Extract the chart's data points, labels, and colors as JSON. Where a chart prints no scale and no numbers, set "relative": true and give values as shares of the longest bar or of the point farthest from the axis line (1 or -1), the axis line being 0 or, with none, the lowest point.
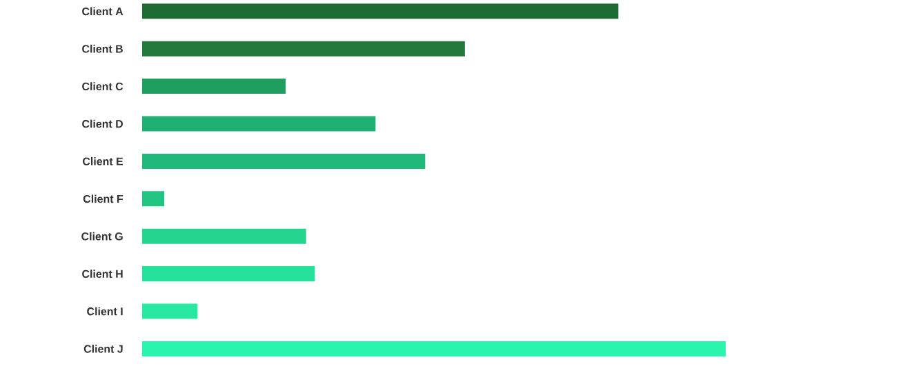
{
  "chart_data": {
    "type": "bar",
    "orientation": "horizontal",
    "relative": true,
    "categories": [
      "Client A",
      "Client B",
      "Client C",
      "Client D",
      "Client E",
      "Client F",
      "Client G",
      "Client H",
      "Client I",
      "Client J"
    ],
    "values": [
      0.816,
      0.553,
      0.246,
      0.4,
      0.485,
      0.038,
      0.281,
      0.296,
      0.095,
      1
    ],
    "colors": [
      "#1e6b34",
      "#217a3c",
      "#1f9e5f",
      "#1fb072",
      "#20b97a",
      "#22c482",
      "#25d58e",
      "#27e09b",
      "#28e8a2",
      "#2af5ad"
    ]
  }
}
